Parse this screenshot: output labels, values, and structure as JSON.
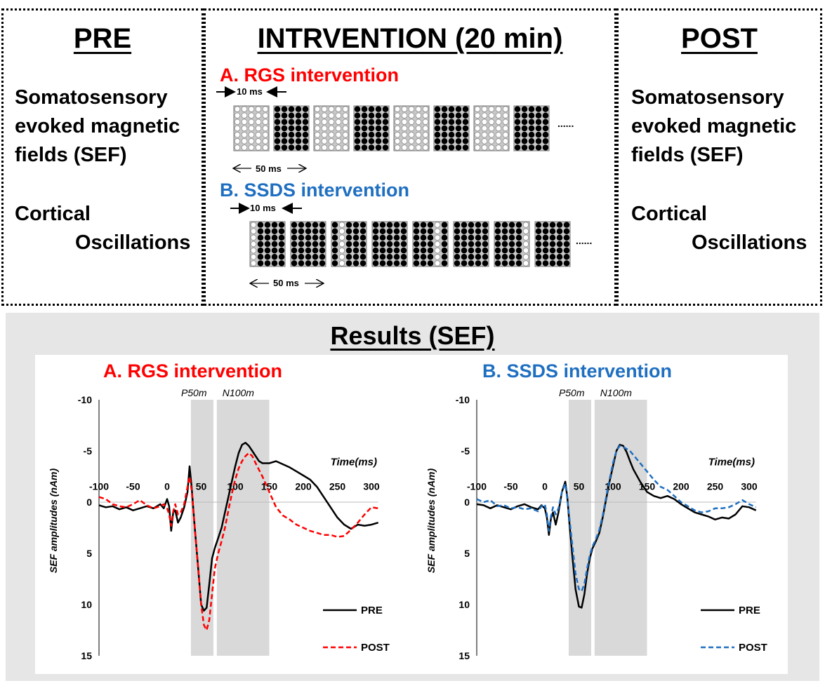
{
  "pre": {
    "title": "PRE",
    "line1": "Somatosensory",
    "line2": "evoked magnetic",
    "line3": "fields (SEF)",
    "line4": "Cortical",
    "line5": "Oscillations"
  },
  "intervention": {
    "title": "INTRVENTION (20 min)",
    "rgs_label": "A. RGS intervention",
    "ssds_label": "B. SSDS intervention",
    "pulse_label": "10 ms",
    "period_label": "50 ms",
    "ellipsis": "......"
  },
  "post": {
    "title": "POST",
    "line1": "Somatosensory",
    "line2": "evoked magnetic",
    "line3": "fields (SEF)",
    "line4": "Cortical",
    "line5": "Oscillations"
  },
  "results": {
    "title": "Results (SEF)"
  },
  "colors": {
    "rgs": "#ff0000",
    "ssds": "#1f6fc1",
    "pre": "#000000",
    "shade": "#d9d9d9"
  },
  "chart_data": [
    {
      "type": "line",
      "title": "A. RGS intervention",
      "xlabel": "Time(ms)",
      "ylabel": "SEF amplitudes (nAm)",
      "xticks": [
        "-100",
        "-50",
        "0",
        "50",
        "100",
        "150",
        "200",
        "250",
        "300"
      ],
      "yticks": [
        "-10",
        "-5",
        "0",
        "5",
        "10",
        "15"
      ],
      "xlim": [
        -100,
        300
      ],
      "ylim": [
        -10,
        15
      ],
      "y_inverted": true,
      "annotations": [
        "P50m",
        "N100m"
      ],
      "shaded_ranges": [
        [
          35,
          68
        ],
        [
          73,
          150
        ]
      ],
      "series": [
        {
          "name": "PRE",
          "points": [
            [
              -100,
              0.3
            ],
            [
              -90,
              0.5
            ],
            [
              -80,
              0.4
            ],
            [
              -70,
              0.7
            ],
            [
              -60,
              0.5
            ],
            [
              -50,
              0.8
            ],
            [
              -40,
              0.6
            ],
            [
              -30,
              0.4
            ],
            [
              -20,
              0.6
            ],
            [
              -10,
              0.2
            ],
            [
              -5,
              0.6
            ],
            [
              0,
              -0.3
            ],
            [
              3,
              0.4
            ],
            [
              6,
              2.8
            ],
            [
              9,
              1.0
            ],
            [
              12,
              0.8
            ],
            [
              16,
              2.0
            ],
            [
              20,
              1.5
            ],
            [
              25,
              0.5
            ],
            [
              30,
              -1.0
            ],
            [
              33,
              -3.5
            ],
            [
              36,
              -1.5
            ],
            [
              40,
              2.0
            ],
            [
              45,
              6.0
            ],
            [
              50,
              10.0
            ],
            [
              54,
              10.6
            ],
            [
              58,
              10.3
            ],
            [
              62,
              8.0
            ],
            [
              66,
              5.5
            ],
            [
              70,
              4.5
            ],
            [
              75,
              3.5
            ],
            [
              80,
              2.5
            ],
            [
              85,
              1.0
            ],
            [
              90,
              -0.5
            ],
            [
              95,
              -2.0
            ],
            [
              100,
              -3.5
            ],
            [
              105,
              -4.8
            ],
            [
              110,
              -5.6
            ],
            [
              115,
              -5.8
            ],
            [
              120,
              -5.5
            ],
            [
              125,
              -5.0
            ],
            [
              130,
              -4.5
            ],
            [
              135,
              -4.0
            ],
            [
              140,
              -3.8
            ],
            [
              150,
              -3.8
            ],
            [
              160,
              -4.0
            ],
            [
              170,
              -3.7
            ],
            [
              180,
              -3.4
            ],
            [
              190,
              -3.0
            ],
            [
              200,
              -2.6
            ],
            [
              210,
              -2.2
            ],
            [
              220,
              -1.5
            ],
            [
              230,
              -0.5
            ],
            [
              240,
              0.5
            ],
            [
              250,
              1.5
            ],
            [
              260,
              2.2
            ],
            [
              270,
              2.6
            ],
            [
              280,
              2.2
            ],
            [
              290,
              2.3
            ],
            [
              300,
              2.2
            ],
            [
              310,
              2.0
            ]
          ]
        },
        {
          "name": "POST",
          "points": [
            [
              -100,
              -0.5
            ],
            [
              -90,
              -0.3
            ],
            [
              -80,
              0.2
            ],
            [
              -70,
              0.4
            ],
            [
              -60,
              0.5
            ],
            [
              -50,
              0.2
            ],
            [
              -40,
              -0.2
            ],
            [
              -30,
              0.3
            ],
            [
              -20,
              0.6
            ],
            [
              -10,
              0.4
            ],
            [
              -5,
              0.2
            ],
            [
              0,
              0.6
            ],
            [
              3,
              1.2
            ],
            [
              6,
              2.3
            ],
            [
              9,
              0.9
            ],
            [
              12,
              0.2
            ],
            [
              16,
              1.2
            ],
            [
              20,
              1.0
            ],
            [
              25,
              0.2
            ],
            [
              30,
              -1.5
            ],
            [
              33,
              -2.5
            ],
            [
              36,
              -1.2
            ],
            [
              40,
              2.0
            ],
            [
              45,
              6.0
            ],
            [
              50,
              10.0
            ],
            [
              54,
              12.0
            ],
            [
              58,
              12.5
            ],
            [
              62,
              11.5
            ],
            [
              66,
              9.0
            ],
            [
              70,
              6.5
            ],
            [
              75,
              5.0
            ],
            [
              80,
              3.8
            ],
            [
              85,
              2.5
            ],
            [
              90,
              0.8
            ],
            [
              95,
              -0.8
            ],
            [
              100,
              -2.2
            ],
            [
              105,
              -3.3
            ],
            [
              110,
              -4.0
            ],
            [
              115,
              -4.5
            ],
            [
              120,
              -4.8
            ],
            [
              125,
              -4.5
            ],
            [
              130,
              -3.8
            ],
            [
              140,
              -2.5
            ],
            [
              150,
              -1.0
            ],
            [
              160,
              0.5
            ],
            [
              170,
              1.3
            ],
            [
              180,
              1.7
            ],
            [
              190,
              2.2
            ],
            [
              200,
              2.5
            ],
            [
              210,
              2.8
            ],
            [
              220,
              3.0
            ],
            [
              230,
              3.2
            ],
            [
              240,
              3.2
            ],
            [
              250,
              3.4
            ],
            [
              260,
              3.3
            ],
            [
              270,
              2.7
            ],
            [
              280,
              2.0
            ],
            [
              290,
              1.2
            ],
            [
              300,
              0.5
            ],
            [
              310,
              0.6
            ]
          ]
        }
      ]
    },
    {
      "type": "line",
      "title": "B. SSDS intervention",
      "xlabel": "Time(ms)",
      "ylabel": "SEF amplitudes (nAm)",
      "xticks": [
        "-100",
        "-50",
        "0",
        "50",
        "100",
        "150",
        "200",
        "250",
        "300"
      ],
      "yticks": [
        "-10",
        "-5",
        "0",
        "5",
        "10",
        "15"
      ],
      "xlim": [
        -100,
        300
      ],
      "ylim": [
        -10,
        15
      ],
      "y_inverted": true,
      "annotations": [
        "P50m",
        "N100m"
      ],
      "shaded_ranges": [
        [
          35,
          68
        ],
        [
          73,
          150
        ]
      ],
      "series": [
        {
          "name": "PRE",
          "points": [
            [
              -100,
              0.2
            ],
            [
              -90,
              0.3
            ],
            [
              -80,
              0.6
            ],
            [
              -70,
              0.3
            ],
            [
              -60,
              0.5
            ],
            [
              -50,
              0.7
            ],
            [
              -40,
              0.4
            ],
            [
              -30,
              0.2
            ],
            [
              -20,
              0.5
            ],
            [
              -10,
              0.7
            ],
            [
              -5,
              0.3
            ],
            [
              0,
              0.6
            ],
            [
              3,
              1.5
            ],
            [
              6,
              3.2
            ],
            [
              9,
              1.6
            ],
            [
              12,
              1.0
            ],
            [
              16,
              2.2
            ],
            [
              20,
              1.0
            ],
            [
              25,
              -1.0
            ],
            [
              30,
              -2.0
            ],
            [
              33,
              -0.5
            ],
            [
              36,
              2.0
            ],
            [
              40,
              5.0
            ],
            [
              45,
              8.5
            ],
            [
              50,
              10.2
            ],
            [
              54,
              10.3
            ],
            [
              58,
              9.0
            ],
            [
              62,
              7.0
            ],
            [
              66,
              5.5
            ],
            [
              70,
              4.5
            ],
            [
              75,
              3.8
            ],
            [
              80,
              3.0
            ],
            [
              85,
              1.5
            ],
            [
              90,
              -0.3
            ],
            [
              95,
              -2.0
            ],
            [
              100,
              -3.5
            ],
            [
              105,
              -5.0
            ],
            [
              110,
              -5.6
            ],
            [
              115,
              -5.5
            ],
            [
              120,
              -4.9
            ],
            [
              125,
              -4.0
            ],
            [
              130,
              -3.2
            ],
            [
              140,
              -2.0
            ],
            [
              150,
              -1.0
            ],
            [
              160,
              -0.6
            ],
            [
              170,
              -0.4
            ],
            [
              180,
              -0.6
            ],
            [
              190,
              -0.3
            ],
            [
              200,
              0.2
            ],
            [
              210,
              0.6
            ],
            [
              220,
              1.0
            ],
            [
              230,
              1.2
            ],
            [
              240,
              1.4
            ],
            [
              250,
              1.7
            ],
            [
              260,
              1.5
            ],
            [
              270,
              1.6
            ],
            [
              280,
              1.2
            ],
            [
              290,
              0.4
            ],
            [
              300,
              0.5
            ],
            [
              310,
              0.8
            ]
          ]
        },
        {
          "name": "POST",
          "points": [
            [
              -100,
              -0.3
            ],
            [
              -90,
              0.0
            ],
            [
              -80,
              -0.2
            ],
            [
              -70,
              0.4
            ],
            [
              -60,
              0.3
            ],
            [
              -50,
              0.6
            ],
            [
              -40,
              0.5
            ],
            [
              -30,
              0.7
            ],
            [
              -20,
              0.6
            ],
            [
              -10,
              0.9
            ],
            [
              -5,
              0.4
            ],
            [
              0,
              0.2
            ],
            [
              3,
              1.2
            ],
            [
              6,
              2.8
            ],
            [
              9,
              1.4
            ],
            [
              12,
              0.5
            ],
            [
              16,
              1.2
            ],
            [
              20,
              0.6
            ],
            [
              25,
              -1.0
            ],
            [
              30,
              -1.8
            ],
            [
              33,
              -0.3
            ],
            [
              36,
              1.5
            ],
            [
              40,
              4.0
            ],
            [
              45,
              7.0
            ],
            [
              50,
              8.5
            ],
            [
              54,
              8.7
            ],
            [
              58,
              8.0
            ],
            [
              62,
              6.5
            ],
            [
              66,
              5.2
            ],
            [
              70,
              4.3
            ],
            [
              75,
              3.6
            ],
            [
              80,
              2.7
            ],
            [
              85,
              1.3
            ],
            [
              90,
              -0.5
            ],
            [
              95,
              -2.2
            ],
            [
              100,
              -3.8
            ],
            [
              105,
              -5.0
            ],
            [
              110,
              -5.5
            ],
            [
              115,
              -5.4
            ],
            [
              120,
              -5.2
            ],
            [
              125,
              -5.0
            ],
            [
              130,
              -4.6
            ],
            [
              140,
              -3.8
            ],
            [
              150,
              -3.0
            ],
            [
              160,
              -2.2
            ],
            [
              170,
              -1.5
            ],
            [
              180,
              -1.2
            ],
            [
              190,
              -0.6
            ],
            [
              200,
              0.0
            ],
            [
              210,
              0.4
            ],
            [
              220,
              0.8
            ],
            [
              230,
              1.0
            ],
            [
              240,
              0.9
            ],
            [
              250,
              0.6
            ],
            [
              260,
              0.6
            ],
            [
              270,
              0.5
            ],
            [
              280,
              0.2
            ],
            [
              290,
              -0.2
            ],
            [
              300,
              0.2
            ],
            [
              310,
              0.5
            ]
          ]
        }
      ]
    }
  ]
}
